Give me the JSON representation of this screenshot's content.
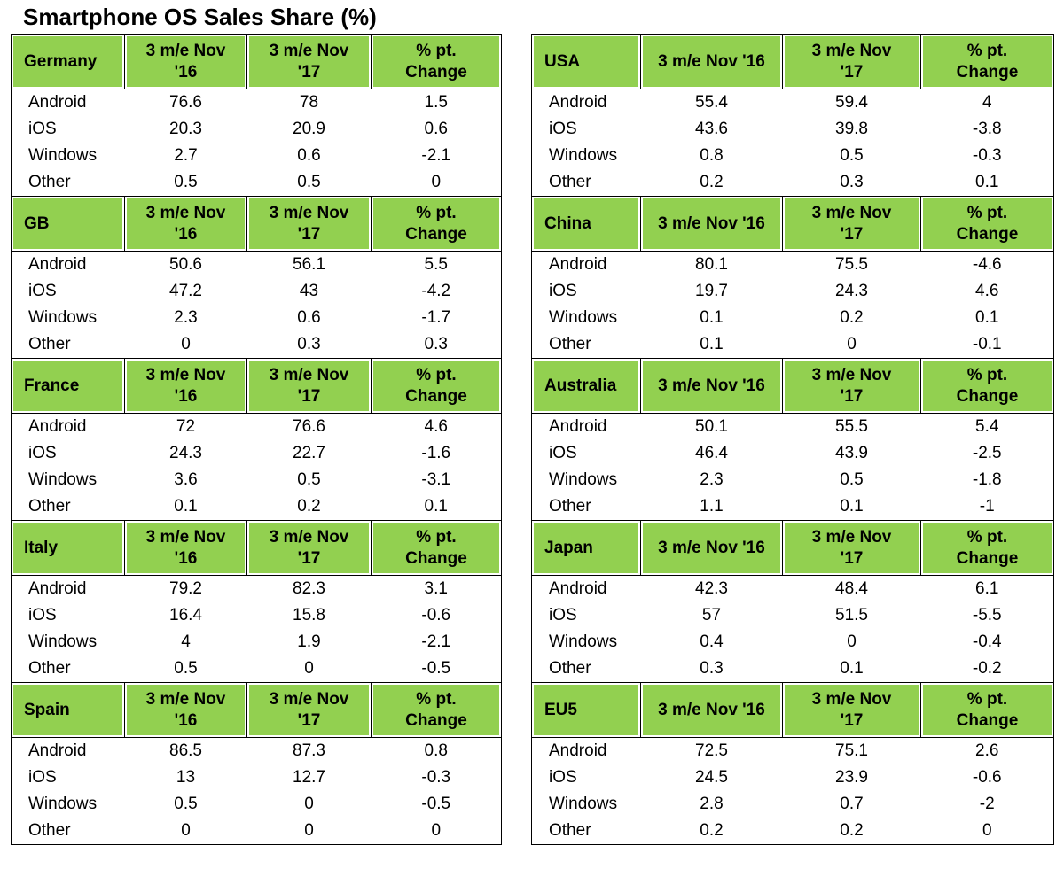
{
  "title": "Smartphone OS Sales Share (%)",
  "tables": [
    {
      "sections": [
        {
          "header": [
            "Germany",
            "3 m/e Nov '16",
            "3 m/e Nov '17",
            "% pt. Change"
          ],
          "rows": [
            [
              "Android",
              "76.6",
              "78",
              "1.5"
            ],
            [
              "iOS",
              "20.3",
              "20.9",
              "0.6"
            ],
            [
              "Windows",
              "2.7",
              "0.6",
              "-2.1"
            ],
            [
              "Other",
              "0.5",
              "0.5",
              "0"
            ]
          ]
        },
        {
          "header": [
            "GB",
            "3 m/e Nov '16",
            "3 m/e Nov '17",
            "% pt. Change"
          ],
          "rows": [
            [
              "Android",
              "50.6",
              "56.1",
              "5.5"
            ],
            [
              "iOS",
              "47.2",
              "43",
              "-4.2"
            ],
            [
              "Windows",
              "2.3",
              "0.6",
              "-1.7"
            ],
            [
              "Other",
              "0",
              "0.3",
              "0.3"
            ]
          ]
        },
        {
          "header": [
            "France",
            "3 m/e Nov '16",
            "3 m/e Nov '17",
            "% pt. Change"
          ],
          "rows": [
            [
              "Android",
              "72",
              "76.6",
              "4.6"
            ],
            [
              "iOS",
              "24.3",
              "22.7",
              "-1.6"
            ],
            [
              "Windows",
              "3.6",
              "0.5",
              "-3.1"
            ],
            [
              "Other",
              "0.1",
              "0.2",
              "0.1"
            ]
          ]
        },
        {
          "header": [
            "Italy",
            "3 m/e Nov '16",
            "3 m/e Nov '17",
            "% pt. Change"
          ],
          "rows": [
            [
              "Android",
              "79.2",
              "82.3",
              "3.1"
            ],
            [
              "iOS",
              "16.4",
              "15.8",
              "-0.6"
            ],
            [
              "Windows",
              "4",
              "1.9",
              "-2.1"
            ],
            [
              "Other",
              "0.5",
              "0",
              "-0.5"
            ]
          ]
        },
        {
          "header": [
            "Spain",
            "3 m/e Nov '16",
            "3 m/e Nov '17",
            "% pt. Change"
          ],
          "rows": [
            [
              "Android",
              "86.5",
              "87.3",
              "0.8"
            ],
            [
              "iOS",
              "13",
              "12.7",
              "-0.3"
            ],
            [
              "Windows",
              "0.5",
              "0",
              "-0.5"
            ],
            [
              "Other",
              "0",
              "0",
              "0"
            ]
          ]
        }
      ]
    },
    {
      "sections": [
        {
          "header": [
            "USA",
            "3 m/e Nov '16",
            "3 m/e Nov '17",
            "% pt. Change"
          ],
          "rows": [
            [
              "Android",
              "55.4",
              "59.4",
              "4"
            ],
            [
              "iOS",
              "43.6",
              "39.8",
              "-3.8"
            ],
            [
              "Windows",
              "0.8",
              "0.5",
              "-0.3"
            ],
            [
              "Other",
              "0.2",
              "0.3",
              "0.1"
            ]
          ]
        },
        {
          "header": [
            "China",
            "3 m/e Nov '16",
            "3 m/e Nov '17",
            "% pt. Change"
          ],
          "rows": [
            [
              "Android",
              "80.1",
              "75.5",
              "-4.6"
            ],
            [
              "iOS",
              "19.7",
              "24.3",
              "4.6"
            ],
            [
              "Windows",
              "0.1",
              "0.2",
              "0.1"
            ],
            [
              "Other",
              "0.1",
              "0",
              "-0.1"
            ]
          ]
        },
        {
          "header": [
            "Australia",
            "3 m/e Nov '16",
            "3 m/e Nov '17",
            "% pt. Change"
          ],
          "rows": [
            [
              "Android",
              "50.1",
              "55.5",
              "5.4"
            ],
            [
              "iOS",
              "46.4",
              "43.9",
              "-2.5"
            ],
            [
              "Windows",
              "2.3",
              "0.5",
              "-1.8"
            ],
            [
              "Other",
              "1.1",
              "0.1",
              "-1"
            ]
          ]
        },
        {
          "header": [
            "Japan",
            "3 m/e Nov '16",
            "3 m/e Nov '17",
            "% pt. Change"
          ],
          "rows": [
            [
              "Android",
              "42.3",
              "48.4",
              "6.1"
            ],
            [
              "iOS",
              "57",
              "51.5",
              "-5.5"
            ],
            [
              "Windows",
              "0.4",
              "0",
              "-0.4"
            ],
            [
              "Other",
              "0.3",
              "0.1",
              "-0.2"
            ]
          ]
        },
        {
          "header": [
            "EU5",
            "3 m/e Nov '16",
            "3 m/e Nov '17",
            "% pt. Change"
          ],
          "rows": [
            [
              "Android",
              "72.5",
              "75.1",
              "2.6"
            ],
            [
              "iOS",
              "24.5",
              "23.9",
              "-0.6"
            ],
            [
              "Windows",
              "2.8",
              "0.7",
              "-2"
            ],
            [
              "Other",
              "0.2",
              "0.2",
              "0"
            ]
          ]
        }
      ]
    }
  ]
}
